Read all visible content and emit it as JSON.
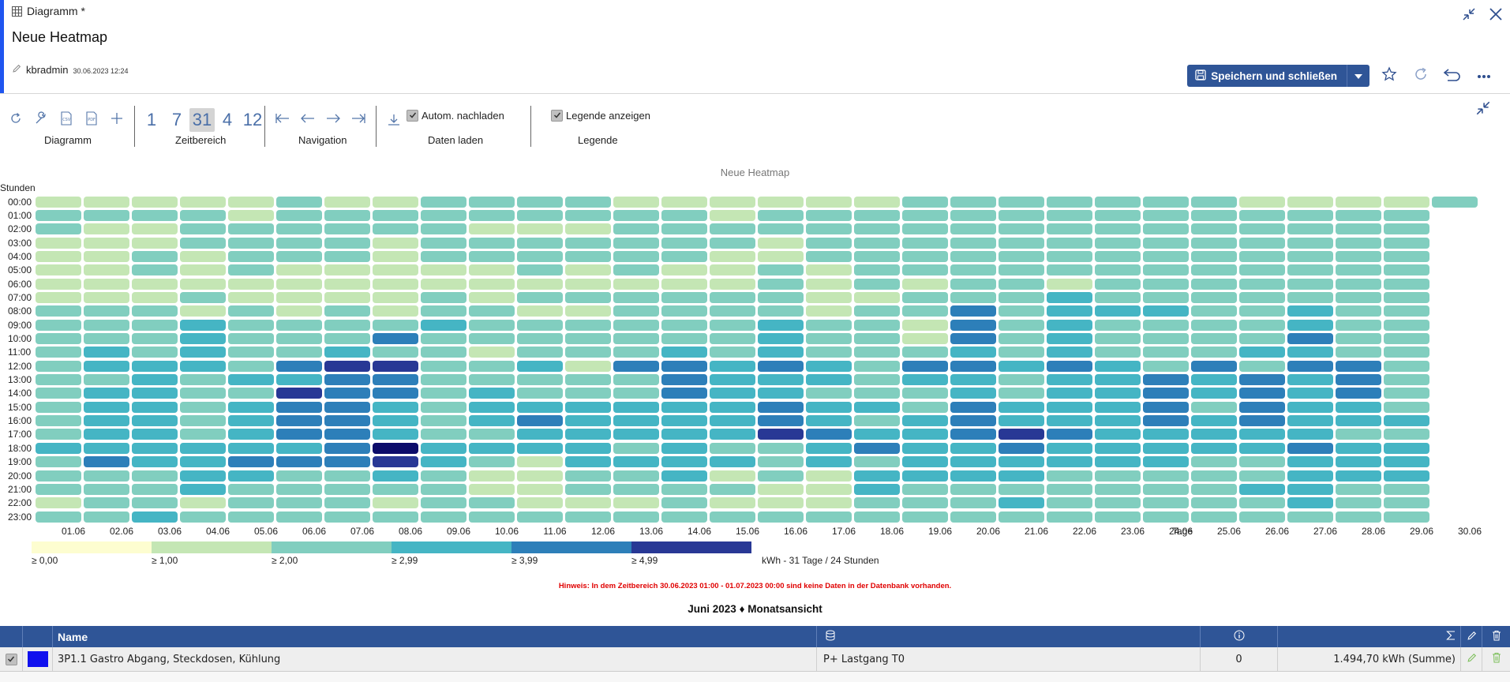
{
  "window": {
    "title": "Diagramm *",
    "heading": "Neue Heatmap",
    "user": "kbradmin",
    "timestamp": "30.06.2023 12:24"
  },
  "actions": {
    "save_label": "Speichern und schließen"
  },
  "toolbar": {
    "groups": {
      "diagram": "Diagramm",
      "range": "Zeitbereich",
      "navigation": "Navigation",
      "load": "Daten laden",
      "legend": "Legende"
    },
    "ranges": [
      "1",
      "7",
      "31",
      "4",
      "12"
    ],
    "selected_range": "31",
    "autoload_label": "Autom. nachladen",
    "autoload_checked": true,
    "show_legend_label": "Legende anzeigen",
    "show_legend_checked": true
  },
  "chart_data": {
    "type": "heatmap",
    "title": "Neue Heatmap",
    "ylabel": "Stunden",
    "xlabel": "Tage",
    "y_categories": [
      "00:00",
      "01:00",
      "02:00",
      "03:00",
      "04:00",
      "05:00",
      "06:00",
      "07:00",
      "08:00",
      "09:00",
      "10:00",
      "11:00",
      "12:00",
      "13:00",
      "14:00",
      "15:00",
      "16:00",
      "17:00",
      "18:00",
      "19:00",
      "20:00",
      "21:00",
      "22:00",
      "23:00"
    ],
    "x_categories": [
      "01.06",
      "02.06",
      "03.06",
      "04.06",
      "05.06",
      "06.06",
      "07.06",
      "08.06",
      "09.06",
      "10.06",
      "11.06",
      "12.06",
      "13.06",
      "14.06",
      "15.06",
      "16.06",
      "17.06",
      "18.06",
      "19.06",
      "20.06",
      "21.06",
      "22.06",
      "23.06",
      "24.06",
      "25.06",
      "26.06",
      "27.06",
      "28.06",
      "29.06",
      "30.06"
    ],
    "levels": [
      "#fdfdd0",
      "#c4e6b4",
      "#81cebf",
      "#45b5c4",
      "#2d7fb9",
      "#283895",
      "#0c0c6a"
    ],
    "grid": [
      "111112112222111111222222211112",
      "22221222222222122222222222222",
      "21122222211122222222222222222",
      "11122221222222212222222222222",
      "11212221222222112222222222222",
      "11212111112121121222222222222",
      "11111111111111121212212222222",
      "11121111212222221122232222222",
      "22212121221122221224233322322",
      "22232222322222232214232222322",
      "22232224222222232214232222422",
      "23232232212223232223232223322",
      "23332455223144343244343242442",
      "22323344222224333233233434342",
      "23322544232224332223233434342",
      "23323443233333343324333424332",
      "23323443234333343234333434333",
      "23323443223333354334543333322",
      "33333346333323223433433333433",
      "24334445321333323233333322333",
      "22233223211223121333322222333",
      "22232222211222211322222223322",
      "12212221221112111222322222322",
      "22322222222222222222222222222"
    ],
    "legend": [
      {
        "label": "≥ 0,00"
      },
      {
        "label": "≥ 1,00"
      },
      {
        "label": "≥ 2,00"
      },
      {
        "label": "≥ 2,99"
      },
      {
        "label": "≥ 3,99"
      },
      {
        "label": "≥ 4,99"
      }
    ],
    "unit_label": "kWh - 31 Tage / 24 Stunden"
  },
  "note": "Hinweis: In dem Zeitbereich 30.06.2023 01:00 - 01.07.2023 00:00 sind keine Daten in der Datenbank vorhanden.",
  "subtitle": "Juni 2023 ♦ Monatsansicht",
  "table": {
    "header_name": "Name",
    "rows": [
      {
        "checked": true,
        "color": "#1010ee",
        "name": "3P1.1 Gastro Abgang, Steckdosen, Kühlung",
        "source": "P+ Lastgang T0",
        "info": "0",
        "value": "1.494,70 kWh (Summe)"
      }
    ]
  }
}
